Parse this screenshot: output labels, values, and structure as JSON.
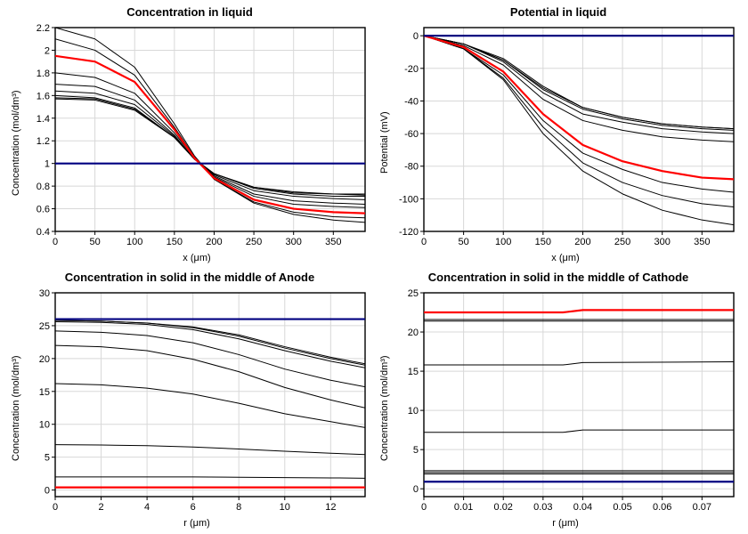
{
  "colors": {
    "bg": "#ffffff",
    "border": "#000000",
    "grid": "#d8d8d8",
    "text": "#000000",
    "navy": "#000080",
    "red": "#ff0000",
    "black_line": "#000000"
  },
  "fonts": {
    "title_size": 13,
    "label_size": 11,
    "tick_size": 11
  },
  "panels": [
    {
      "id": "tl",
      "title": "Concentration in liquid",
      "xlabel": "x (μm)",
      "ylabel": "Concentration (mol/dm³)",
      "xlim": [
        0,
        390
      ],
      "ylim": [
        0.4,
        2.2
      ],
      "xticks": [
        0,
        50,
        100,
        150,
        200,
        250,
        300,
        350
      ],
      "yticks": [
        0.4,
        0.6,
        0.8,
        1.0,
        1.2,
        1.4,
        1.6,
        1.8,
        2.0,
        2.2
      ],
      "navy_flat": 1.0,
      "red_series": {
        "x": [
          0,
          50,
          100,
          150,
          175,
          200,
          250,
          300,
          350,
          390
        ],
        "y": [
          1.95,
          1.9,
          1.72,
          1.3,
          1.05,
          0.87,
          0.68,
          0.6,
          0.57,
          0.56
        ]
      },
      "black_series": [
        {
          "x": [
            0,
            50,
            100,
            150,
            175,
            200,
            250,
            300,
            350,
            390
          ],
          "y": [
            2.2,
            2.1,
            1.85,
            1.35,
            1.07,
            0.86,
            0.65,
            0.55,
            0.5,
            0.48
          ]
        },
        {
          "x": [
            0,
            50,
            100,
            150,
            175,
            200,
            250,
            300,
            350,
            390
          ],
          "y": [
            2.1,
            2.0,
            1.78,
            1.32,
            1.06,
            0.86,
            0.66,
            0.57,
            0.53,
            0.52
          ]
        },
        {
          "x": [
            0,
            50,
            100,
            150,
            175,
            200,
            250,
            300,
            350,
            390
          ],
          "y": [
            1.8,
            1.76,
            1.62,
            1.27,
            1.05,
            0.88,
            0.71,
            0.64,
            0.62,
            0.61
          ]
        },
        {
          "x": [
            0,
            50,
            100,
            150,
            175,
            200,
            250,
            300,
            350,
            390
          ],
          "y": [
            1.7,
            1.68,
            1.56,
            1.25,
            1.04,
            0.89,
            0.73,
            0.67,
            0.65,
            0.64
          ]
        },
        {
          "x": [
            0,
            50,
            100,
            150,
            175,
            200,
            250,
            300,
            350,
            390
          ],
          "y": [
            1.64,
            1.62,
            1.52,
            1.24,
            1.04,
            0.9,
            0.76,
            0.71,
            0.69,
            0.68
          ]
        },
        {
          "x": [
            0,
            50,
            100,
            150,
            175,
            200,
            250,
            300,
            350,
            390
          ],
          "y": [
            1.6,
            1.58,
            1.49,
            1.23,
            1.04,
            0.91,
            0.78,
            0.73,
            0.71,
            0.71
          ]
        },
        {
          "x": [
            0,
            50,
            100,
            150,
            175,
            200,
            250,
            300,
            350,
            390
          ],
          "y": [
            1.58,
            1.57,
            1.48,
            1.23,
            1.04,
            0.91,
            0.79,
            0.74,
            0.73,
            0.72
          ]
        },
        {
          "x": [
            0,
            50,
            100,
            150,
            175,
            200,
            250,
            300,
            350,
            390
          ],
          "y": [
            1.57,
            1.56,
            1.47,
            1.23,
            1.04,
            0.91,
            0.79,
            0.75,
            0.73,
            0.73
          ]
        }
      ]
    },
    {
      "id": "tr",
      "title": "Potential in liquid",
      "xlabel": "x (μm)",
      "ylabel": "Potential (mV)",
      "xlim": [
        0,
        390
      ],
      "ylim": [
        -120,
        5
      ],
      "xticks": [
        0,
        50,
        100,
        150,
        200,
        250,
        300,
        350
      ],
      "yticks": [
        -120,
        -100,
        -80,
        -60,
        -40,
        -20,
        0
      ],
      "navy_flat": 0.0,
      "red_series": {
        "x": [
          0,
          50,
          100,
          150,
          200,
          250,
          300,
          350,
          390
        ],
        "y": [
          0,
          -7,
          -22,
          -48,
          -67,
          -77,
          -83,
          -87,
          -88
        ]
      },
      "black_series": [
        {
          "x": [
            0,
            50,
            100,
            150,
            200,
            250,
            300,
            350,
            390
          ],
          "y": [
            0,
            -8,
            -27,
            -60,
            -83,
            -97,
            -107,
            -113,
            -116
          ]
        },
        {
          "x": [
            0,
            50,
            100,
            150,
            200,
            250,
            300,
            350,
            390
          ],
          "y": [
            0,
            -8,
            -26,
            -56,
            -78,
            -90,
            -98,
            -103,
            -105
          ]
        },
        {
          "x": [
            0,
            50,
            100,
            150,
            200,
            250,
            300,
            350,
            390
          ],
          "y": [
            0,
            -8,
            -24,
            -52,
            -72,
            -82,
            -90,
            -94,
            -96
          ]
        },
        {
          "x": [
            0,
            50,
            100,
            150,
            200,
            250,
            300,
            350,
            390
          ],
          "y": [
            0,
            -6,
            -18,
            -39,
            -52,
            -58,
            -62,
            -64,
            -65
          ]
        },
        {
          "x": [
            0,
            50,
            100,
            150,
            200,
            250,
            300,
            350,
            390
          ],
          "y": [
            0,
            -5,
            -16,
            -35,
            -48,
            -53,
            -57,
            -59,
            -60
          ]
        },
        {
          "x": [
            0,
            50,
            100,
            150,
            200,
            250,
            300,
            350,
            390
          ],
          "y": [
            0,
            -5,
            -15,
            -33,
            -45,
            -51,
            -55,
            -57,
            -58
          ]
        },
        {
          "x": [
            0,
            50,
            100,
            150,
            200,
            250,
            300,
            350,
            390
          ],
          "y": [
            0,
            -5,
            -15,
            -32,
            -44,
            -50,
            -54,
            -56,
            -57
          ]
        },
        {
          "x": [
            0,
            50,
            100,
            150,
            200,
            250,
            300,
            350,
            390
          ],
          "y": [
            0,
            -5,
            -14,
            -31,
            -44,
            -50,
            -54,
            -56,
            -57
          ]
        }
      ]
    },
    {
      "id": "bl",
      "title": "Concentration in solid in the middle of Anode",
      "xlabel": "r (μm)",
      "ylabel": "Concentration (mol/dm³)",
      "xlim": [
        0,
        13.5
      ],
      "ylim": [
        -1,
        30
      ],
      "xticks": [
        0,
        2,
        4,
        6,
        8,
        10,
        12
      ],
      "yticks": [
        0,
        5,
        10,
        15,
        20,
        25,
        30
      ],
      "navy_flat": 26.0,
      "red_flat": 0.4,
      "black_series": [
        {
          "x": [
            0,
            2,
            4,
            6,
            8,
            10,
            12,
            13.5
          ],
          "y": [
            25.8,
            25.7,
            25.4,
            24.8,
            23.6,
            21.8,
            20.2,
            19.2
          ]
        },
        {
          "x": [
            0,
            2,
            4,
            6,
            8,
            10,
            12,
            13.5
          ],
          "y": [
            25.8,
            25.7,
            25.4,
            24.7,
            23.4,
            21.6,
            20.0,
            19.0
          ]
        },
        {
          "x": [
            0,
            2,
            4,
            6,
            8,
            10,
            12,
            13.5
          ],
          "y": [
            25.6,
            25.5,
            25.2,
            24.4,
            23.0,
            21.2,
            19.6,
            18.6
          ]
        },
        {
          "x": [
            0,
            2,
            4,
            6,
            8,
            10,
            12,
            13.5
          ],
          "y": [
            24.2,
            24.0,
            23.5,
            22.4,
            20.6,
            18.4,
            16.7,
            15.7
          ]
        },
        {
          "x": [
            0,
            2,
            4,
            6,
            8,
            10,
            12,
            13.5
          ],
          "y": [
            22.0,
            21.8,
            21.2,
            19.9,
            18.0,
            15.6,
            13.7,
            12.5
          ]
        },
        {
          "x": [
            0,
            2,
            4,
            6,
            8,
            10,
            12,
            13.5
          ],
          "y": [
            16.2,
            16.0,
            15.5,
            14.6,
            13.2,
            11.6,
            10.4,
            9.5
          ]
        },
        {
          "x": [
            0,
            2,
            4,
            6,
            8,
            10,
            12,
            13.5
          ],
          "y": [
            6.9,
            6.85,
            6.75,
            6.55,
            6.25,
            5.9,
            5.6,
            5.4
          ]
        },
        {
          "x": [
            0,
            2,
            4,
            6,
            8,
            10,
            12,
            13.5
          ],
          "y": [
            2.0,
            2.0,
            2.0,
            2.0,
            1.95,
            1.9,
            1.85,
            1.8
          ]
        }
      ]
    },
    {
      "id": "br",
      "title": "Concentration in solid in the middle of Cathode",
      "xlabel": "r (μm)",
      "ylabel": "Concentration (mol/dm³)",
      "xlim": [
        0,
        0.078
      ],
      "ylim": [
        -1,
        25
      ],
      "xticks": [
        0,
        0.01,
        0.02,
        0.03,
        0.04,
        0.05,
        0.06,
        0.07
      ],
      "yticks": [
        0,
        5,
        10,
        15,
        20,
        25
      ],
      "navy_flat": 0.9,
      "red_flat_series": {
        "x": [
          0,
          0.035,
          0.04,
          0.078
        ],
        "y": [
          22.5,
          22.5,
          22.8,
          22.8
        ]
      },
      "black_series": [
        {
          "x": [
            0,
            0.078
          ],
          "y": [
            21.6,
            21.6
          ]
        },
        {
          "x": [
            0,
            0.078
          ],
          "y": [
            21.4,
            21.4
          ]
        },
        {
          "x": [
            0,
            0.035,
            0.04,
            0.078
          ],
          "y": [
            15.8,
            15.8,
            16.1,
            16.2
          ]
        },
        {
          "x": [
            0,
            0.035,
            0.04,
            0.078
          ],
          "y": [
            7.2,
            7.2,
            7.5,
            7.5
          ]
        },
        {
          "x": [
            0,
            0.078
          ],
          "y": [
            2.3,
            2.3
          ]
        },
        {
          "x": [
            0,
            0.078
          ],
          "y": [
            2.1,
            2.1
          ]
        },
        {
          "x": [
            0,
            0.078
          ],
          "y": [
            1.9,
            1.9
          ]
        }
      ]
    }
  ]
}
